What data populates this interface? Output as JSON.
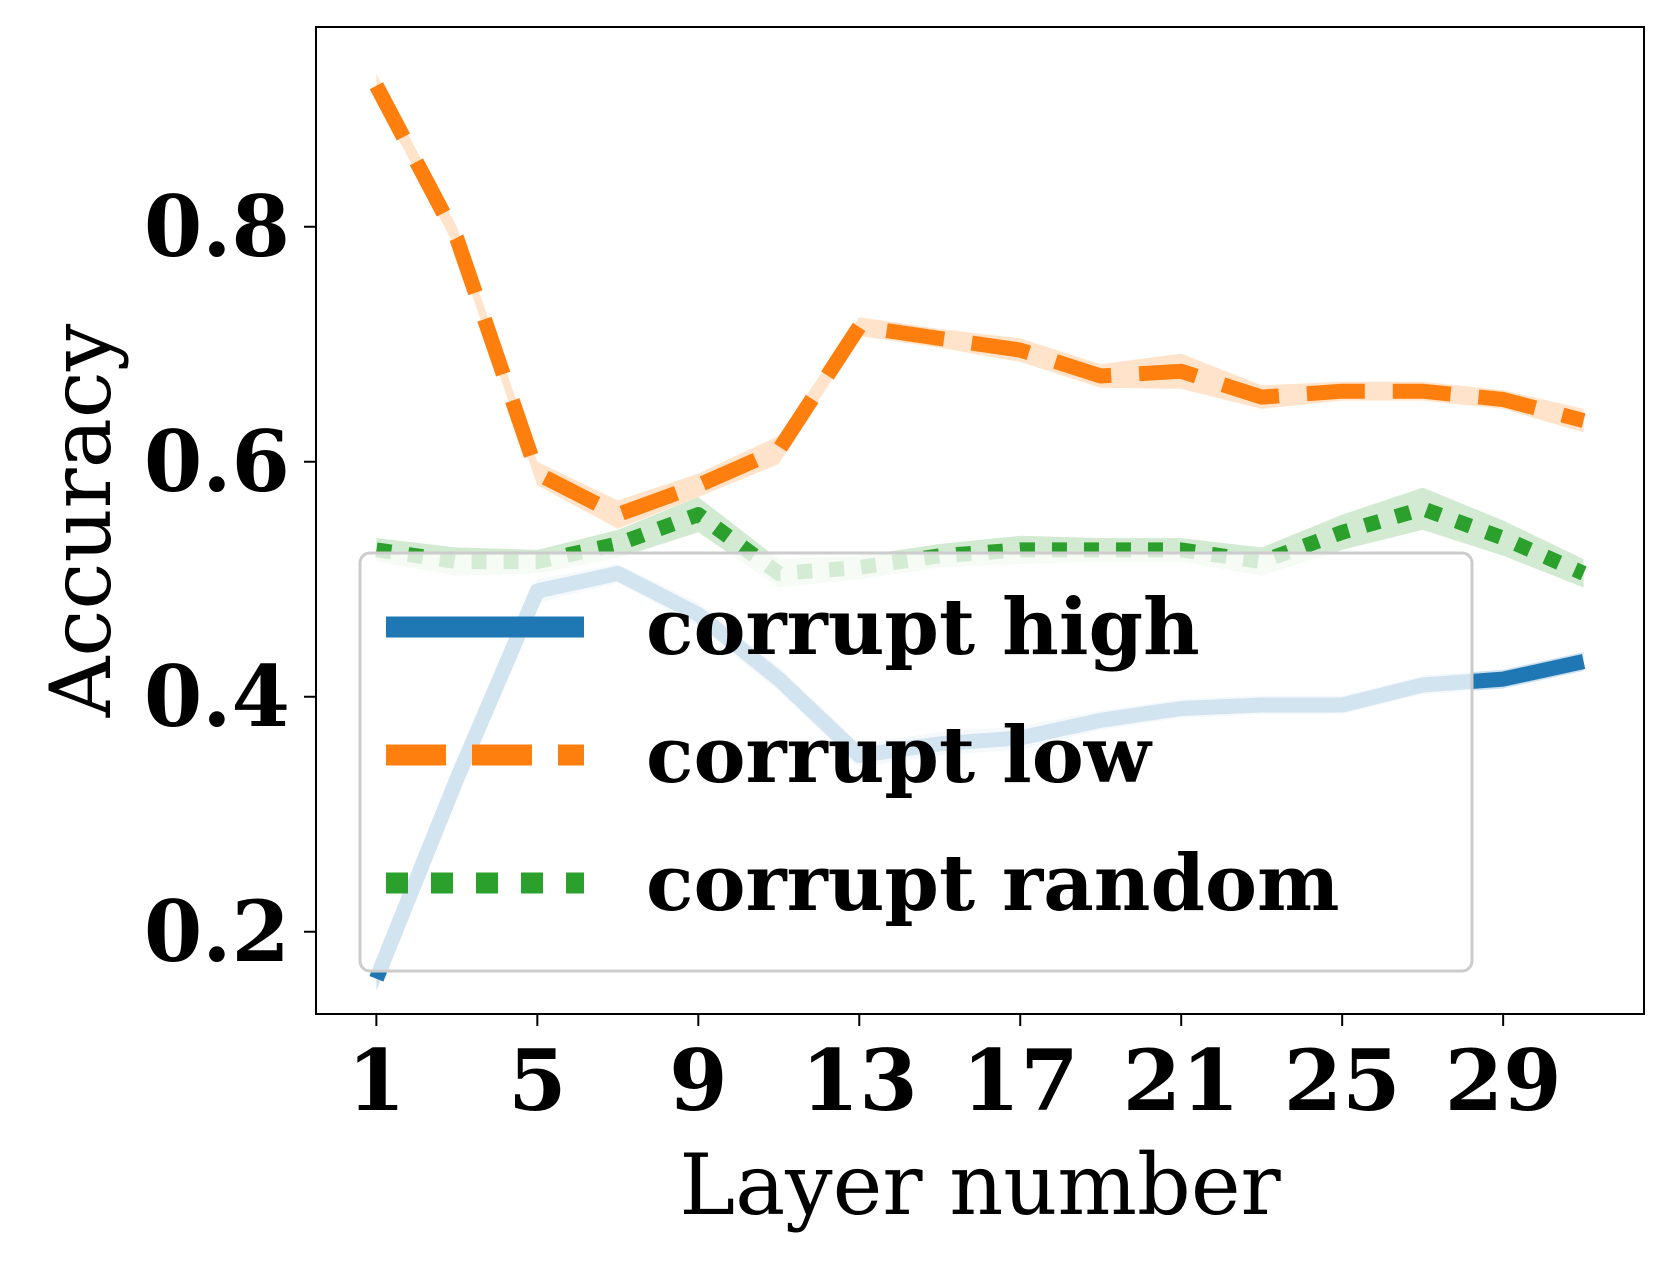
{
  "chart_data": {
    "type": "line",
    "xlabel": "Layer number",
    "ylabel": "Accuracy",
    "xlim": [
      -0.5,
      32.5
    ],
    "ylim": [
      0.13,
      0.97
    ],
    "xticks": [
      1,
      5,
      9,
      13,
      17,
      21,
      25,
      29
    ],
    "yticks": [
      0.2,
      0.4,
      0.6,
      0.8
    ],
    "ytick_labels": [
      "0.2",
      "0.4",
      "0.6",
      "0.8"
    ],
    "grid": false,
    "legend_position": "center",
    "x": [
      1,
      3,
      5,
      7,
      9,
      11,
      13,
      15,
      17,
      19,
      21,
      23,
      25,
      27,
      29,
      31
    ],
    "series": [
      {
        "name": "corrupt high",
        "color": "#1f77b4",
        "style": "solid",
        "values": [
          0.16,
          0.33,
          0.49,
          0.505,
          0.47,
          0.415,
          0.35,
          0.36,
          0.365,
          0.38,
          0.39,
          0.393,
          0.393,
          0.41,
          0.415,
          0.43
        ],
        "band": [
          0.01,
          0.01,
          0.01,
          0.008,
          0.01,
          0.01,
          0.01,
          0.01,
          0.01,
          0.008,
          0.008,
          0.008,
          0.008,
          0.008,
          0.008,
          0.008
        ]
      },
      {
        "name": "corrupt low",
        "color": "#ff7f0e",
        "style": "dashed",
        "values": [
          0.92,
          0.79,
          0.59,
          0.555,
          0.58,
          0.61,
          0.715,
          0.705,
          0.695,
          0.673,
          0.677,
          0.655,
          0.66,
          0.66,
          0.653,
          0.635
        ],
        "band": [
          0.01,
          0.01,
          0.01,
          0.012,
          0.01,
          0.012,
          0.008,
          0.008,
          0.01,
          0.01,
          0.015,
          0.01,
          0.008,
          0.008,
          0.008,
          0.01
        ]
      },
      {
        "name": "corrupt random",
        "color": "#2ca02c",
        "style": "dotted",
        "values": [
          0.525,
          0.515,
          0.515,
          0.53,
          0.555,
          0.505,
          0.51,
          0.52,
          0.525,
          0.525,
          0.525,
          0.515,
          0.54,
          0.56,
          0.535,
          0.505
        ],
        "band": [
          0.01,
          0.012,
          0.01,
          0.012,
          0.015,
          0.012,
          0.01,
          0.01,
          0.012,
          0.01,
          0.01,
          0.012,
          0.015,
          0.018,
          0.015,
          0.012
        ]
      }
    ]
  }
}
